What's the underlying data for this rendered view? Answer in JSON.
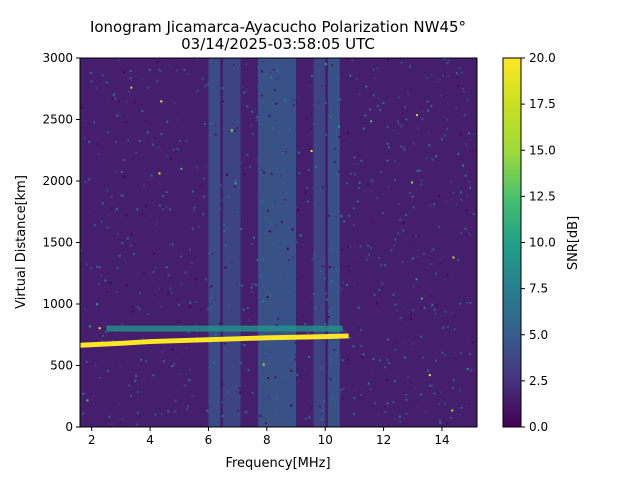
{
  "chart_data": {
    "type": "heatmap",
    "title_line1": "Ionogram Jicamarca-Ayacucho Polarization NW45°",
    "title_line2": "03/14/2025-03:58:05 UTC",
    "xlabel": "Frequency[MHz]",
    "ylabel": "Virtual Distance[km]",
    "xlim": [
      1.6,
      15.2
    ],
    "ylim": [
      0,
      3000
    ],
    "x_ticks": [
      2,
      4,
      6,
      8,
      10,
      12,
      14
    ],
    "x_tick_labels": [
      "2",
      "4",
      "6",
      "8",
      "10",
      "12",
      "14"
    ],
    "y_ticks": [
      0,
      500,
      1000,
      1500,
      2000,
      2500,
      3000
    ],
    "y_tick_labels": [
      "0",
      "500",
      "1000",
      "1500",
      "2000",
      "2500",
      "3000"
    ],
    "colorbar": {
      "label": "SNR[dB]",
      "range": [
        0,
        20
      ],
      "colormap": "viridis",
      "ticks": [
        0,
        2.5,
        5,
        7.5,
        10,
        12.5,
        15,
        17.5,
        20
      ],
      "tick_labels": [
        "0.0",
        "2.5",
        "5.0",
        "7.5",
        "10.0",
        "12.5",
        "15.0",
        "17.5",
        "20.0"
      ]
    },
    "background_snr_db": 1.5,
    "noise_bands": [
      {
        "f_start": 6.0,
        "f_end": 6.4,
        "snr_db": 4.5
      },
      {
        "f_start": 6.5,
        "f_end": 7.1,
        "snr_db": 4.0
      },
      {
        "f_start": 7.7,
        "f_end": 9.0,
        "snr_db": 5.0
      },
      {
        "f_start": 9.6,
        "f_end": 10.0,
        "snr_db": 4.0
      },
      {
        "f_start": 10.1,
        "f_end": 10.5,
        "snr_db": 5.0
      }
    ],
    "trace": {
      "points": [
        {
          "f": 1.6,
          "h": 665
        },
        {
          "f": 3.0,
          "h": 680
        },
        {
          "f": 4.0,
          "h": 695
        },
        {
          "f": 6.0,
          "h": 710
        },
        {
          "f": 8.0,
          "h": 725
        },
        {
          "f": 10.0,
          "h": 735
        },
        {
          "f": 10.8,
          "h": 740
        }
      ],
      "snr_db": 20,
      "thickness_km": 40
    },
    "secondary_echo": {
      "f_start": 2.5,
      "f_end": 10.6,
      "h": 800,
      "snr_db": 9
    }
  }
}
